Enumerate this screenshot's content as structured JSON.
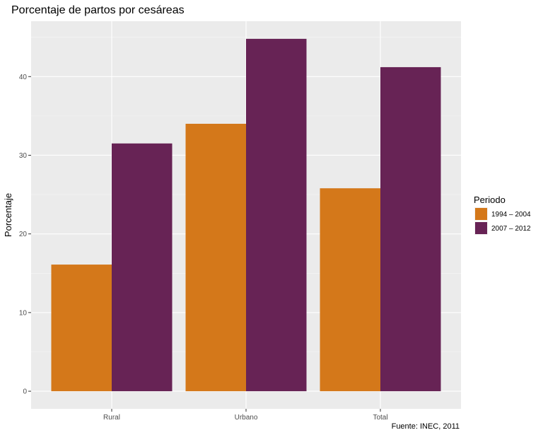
{
  "chart_data": {
    "type": "bar",
    "title": "Porcentaje de partos por cesáreas",
    "xlabel": "",
    "ylabel": "Porcentaje",
    "caption": "Fuente: INEC, 2011",
    "categories": [
      "Rural",
      "Urbano",
      "Total"
    ],
    "series": [
      {
        "name": "1994 – 2004",
        "values": [
          16.1,
          34.0,
          25.8
        ],
        "color": "#D4781A"
      },
      {
        "name": "2007 – 2012",
        "values": [
          31.5,
          44.8,
          41.2
        ],
        "color": "#672355"
      }
    ],
    "yticks": [
      0,
      10,
      20,
      30,
      40
    ],
    "ylim": [
      -2.24,
      47.04
    ],
    "grid": true,
    "panel_background": "#EBEBEB",
    "legend": {
      "title": "Periodo",
      "position": "right"
    }
  }
}
